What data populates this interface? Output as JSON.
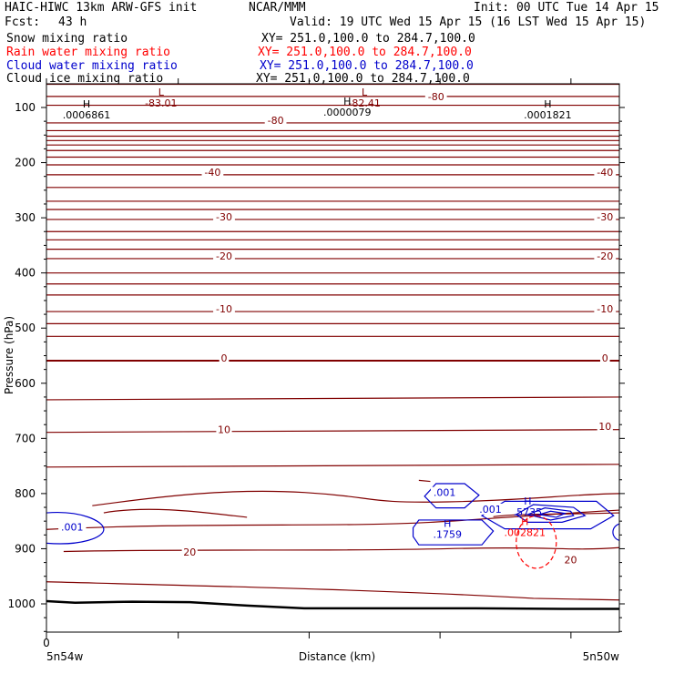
{
  "header": {
    "model": "HAIC-HIWC 13km ARW-GFS init",
    "org": "NCAR/MMM",
    "init": "Init: 00 UTC Tue 14 Apr 15",
    "fcst_label": "Fcst:",
    "fcst_value": "43 h",
    "valid": "Valid: 19 UTC Wed 15 Apr 15 (16 LST Wed 15 Apr 15)"
  },
  "fields": [
    {
      "name": "Snow mixing ratio",
      "xy": "XY= 251.0,100.0 to 284.7,100.0",
      "color": "#000000"
    },
    {
      "name": "Rain water mixing ratio",
      "xy": "XY= 251.0,100.0 to 284.7,100.0",
      "color": "#ff0000"
    },
    {
      "name": "Cloud water mixing ratio",
      "xy": "XY= 251.0,100.0 to 284.7,100.0",
      "color": "#0000cc"
    },
    {
      "name": "Cloud ice mixing ratio",
      "xy": "XY= 251.0,100.0 to 284.7,100.0",
      "color": "#000000"
    }
  ],
  "chart_data": {
    "type": "line",
    "ylabel": "Pressure (hPa)",
    "xlabel": "Distance (km)",
    "x_left_label": "5n54w",
    "x_right_label": "5n50w",
    "x_tick_labels": [
      "0"
    ],
    "y_ticks": [
      100,
      200,
      300,
      400,
      500,
      600,
      700,
      800,
      900,
      1000
    ],
    "ylim": [
      1050,
      50
    ],
    "colors": {
      "temperature": "#800000",
      "cloud_water": "#0000cc",
      "rain": "#ff0000",
      "ground": "#000000"
    },
    "temperature_labels": [
      {
        "text": "-80",
        "p": 128,
        "x": 0.4
      },
      {
        "text": "-80",
        "p": 85,
        "x": 0.68
      },
      {
        "text": "-40",
        "p": 222,
        "x": 0.29
      },
      {
        "text": "-40",
        "p": 222,
        "x": 0.975
      },
      {
        "text": "-30",
        "p": 303,
        "x": 0.31
      },
      {
        "text": "-30",
        "p": 303,
        "x": 0.975
      },
      {
        "text": "-20",
        "p": 374,
        "x": 0.31
      },
      {
        "text": "-20",
        "p": 374,
        "x": 0.975
      },
      {
        "text": "-10",
        "p": 470,
        "x": 0.31
      },
      {
        "text": "-10",
        "p": 470,
        "x": 0.975
      },
      {
        "text": "0",
        "p": 559,
        "x": 0.31
      },
      {
        "text": "0",
        "p": 559,
        "x": 0.975
      },
      {
        "text": "10",
        "p": 689,
        "x": 0.31
      },
      {
        "text": "10",
        "p": 683,
        "x": 0.975
      },
      {
        "text": "20",
        "p": 911,
        "x": 0.25
      },
      {
        "text": "20",
        "p": 925,
        "x": 0.915
      }
    ],
    "extrema": [
      {
        "kind": "L",
        "value": "-83.01",
        "p": 98,
        "x": 0.2,
        "color": "#800000"
      },
      {
        "kind": "L",
        "value": "-82.41",
        "p": 98,
        "x": 0.555,
        "color": "#800000"
      },
      {
        "kind": "H",
        "value": ".0006861",
        "p": 120,
        "x": 0.07,
        "color": "#000000"
      },
      {
        "kind": "H",
        "value": ".0000079",
        "p": 115,
        "x": 0.525,
        "color": "#000000"
      },
      {
        "kind": "H",
        "value": ".0001821",
        "p": 120,
        "x": 0.875,
        "color": "#000000"
      },
      {
        "kind": "H",
        "value": ".1759",
        "p": 880,
        "x": 0.7,
        "color": "#0000cc"
      },
      {
        "kind": "H",
        "value": ".5735",
        "p": 840,
        "x": 0.84,
        "color": "#0000cc"
      },
      {
        "kind": "H",
        "value": ".002821",
        "p": 877,
        "x": 0.835,
        "color": "#ff0000"
      }
    ],
    "cloud_labels": [
      {
        "text": ".001",
        "p": 865,
        "x": 0.045
      },
      {
        "text": ".001",
        "p": 803,
        "x": 0.695
      },
      {
        "text": ".001",
        "p": 833,
        "x": 0.775
      }
    ]
  }
}
